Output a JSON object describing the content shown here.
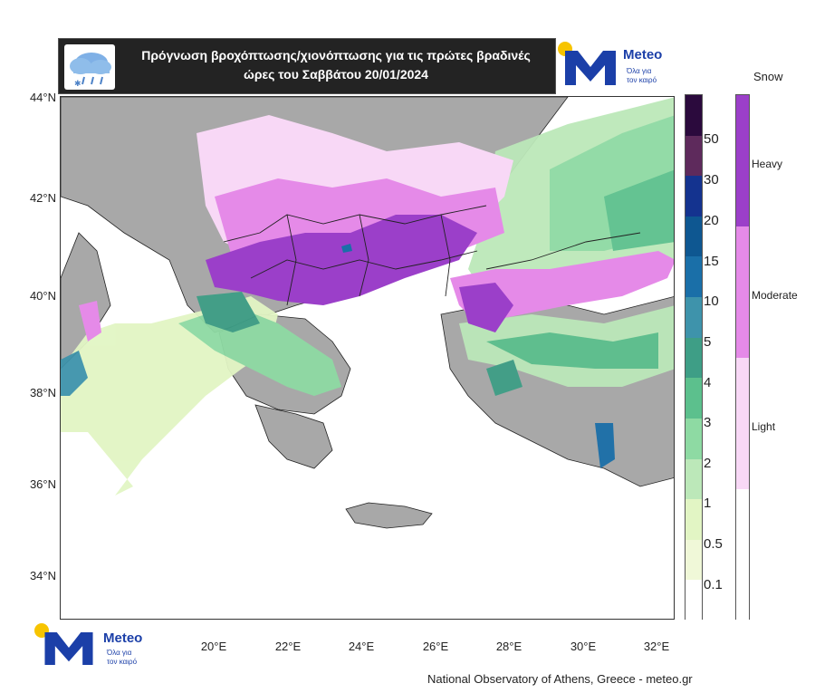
{
  "header": {
    "title_line1": "Πρόγνωση βροχόπτωσης/χιονόπτωσης για τις πρώτες βραδινές",
    "title_line2": "ώρες του Σαββάτου 20/01/2024"
  },
  "logo": {
    "brand": "Meteo",
    "slogan_line1": "Όλα για",
    "slogan_line2": "τον καιρό"
  },
  "map": {
    "lat_ticks": [
      "44°N",
      "42°N",
      "40°N",
      "38°N",
      "36°N",
      "34°N"
    ],
    "lon_ticks": [
      "20°E",
      "22°E",
      "24°E",
      "26°E",
      "28°E",
      "30°E",
      "32°E"
    ]
  },
  "precip_scale": {
    "labels": [
      "50",
      "30",
      "20",
      "15",
      "10",
      "5",
      "4",
      "3",
      "2",
      "1",
      "0.5",
      "0.1"
    ],
    "colors": [
      "#2b0a3d",
      "#5e2a5c",
      "#14338f",
      "#0e5791",
      "#1a6fa8",
      "#3e93ab",
      "#3e9e86",
      "#5cc08d",
      "#8edaa3",
      "#bce8b9",
      "#e2f5c4",
      "#f0f8d8",
      "#ffffff"
    ]
  },
  "snow_scale": {
    "title": "Snow",
    "levels": [
      {
        "label": "Heavy",
        "color": "#9b3fc9"
      },
      {
        "label": "Moderate",
        "color": "#e58ae8"
      },
      {
        "label": "Light",
        "color": "#f8d8f6"
      },
      {
        "label": "",
        "color": "#ffffff"
      }
    ]
  },
  "credit": "National Observatory of Athens, Greece - meteo.gr"
}
